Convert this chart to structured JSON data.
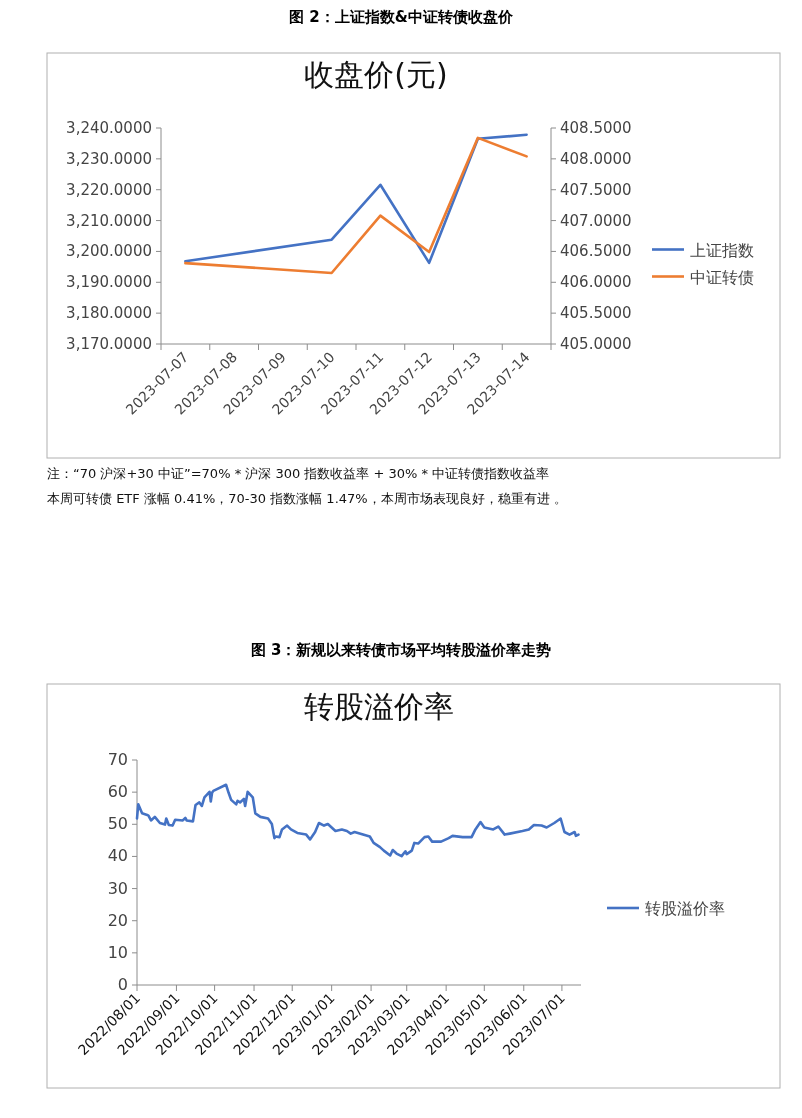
{
  "chart_data": [
    {
      "type": "line",
      "title": "图 2：上证指数&中证转债收盘价",
      "subtitle": "收盘价(元)",
      "annotations": [
        "注：“70 沪深+30 中证”=70% *  沪深 300 指数收益率 + 30% *  中证转债指数收益率",
        "本周可转债 ETF 涨幅 0.41%，70-30 指数涨幅 1.47%，本周市场表现良好，稳重有进 。"
      ],
      "x": [
        "2023-07-07",
        "2023-07-10",
        "2023-07-11",
        "2023-07-12",
        "2023-07-13",
        "2023-07-14"
      ],
      "series": [
        {
          "name": "上证指数",
          "color": "#4472c4",
          "values": [
            3196.8,
            3203.8,
            3221.6,
            3196.3,
            3236.5,
            3237.8
          ]
        },
        {
          "name": "中证转债",
          "color": "#ed7d31",
          "axis": "y2",
          "values": [
            406.31,
            406.15,
            407.08,
            406.49,
            408.34,
            408.04
          ]
        }
      ],
      "xlim": [
        "2023-07-06T12:00",
        "2023-07-14T12:00"
      ],
      "xticks": [
        {
          "value": "2023-07-07",
          "label": "2023-07-07"
        },
        {
          "value": "2023-07-08",
          "label": "2023-07-08"
        },
        {
          "value": "2023-07-09",
          "label": "2023-07-09"
        },
        {
          "value": "2023-07-10",
          "label": "2023-07-10"
        },
        {
          "value": "2023-07-11",
          "label": "2023-07-11"
        },
        {
          "value": "2023-07-12",
          "label": "2023-07-12"
        },
        {
          "value": "2023-07-13",
          "label": "2023-07-13"
        },
        {
          "value": "2023-07-14",
          "label": "2023-07-14"
        }
      ],
      "ylim": [
        3170,
        3240
      ],
      "yticks": [
        {
          "value": 3170,
          "label": "3,170.0000"
        },
        {
          "value": 3180,
          "label": "3,180.0000"
        },
        {
          "value": 3190,
          "label": "3,190.0000"
        },
        {
          "value": 3200,
          "label": "3,200.0000"
        },
        {
          "value": 3210,
          "label": "3,210.0000"
        },
        {
          "value": 3220,
          "label": "3,220.0000"
        },
        {
          "value": 3230,
          "label": "3,230.0000"
        },
        {
          "value": 3240,
          "label": "3,240.0000"
        }
      ],
      "y2lim": [
        405,
        408.5
      ],
      "y2ticks": [
        {
          "value": 405,
          "label": "405.0000"
        },
        {
          "value": 405.5,
          "label": "405.5000"
        },
        {
          "value": 406,
          "label": "406.0000"
        },
        {
          "value": 406.5,
          "label": "406.5000"
        },
        {
          "value": 407,
          "label": "407.0000"
        },
        {
          "value": 407.5,
          "label": "407.5000"
        },
        {
          "value": 408,
          "label": "408.0000"
        },
        {
          "value": 408.5,
          "label": "408.5000"
        }
      ],
      "legend": "right"
    },
    {
      "type": "line",
      "title": "图 3：新规以来转债市场平均转股溢价率走势",
      "subtitle": "转股溢价率",
      "x": [
        "2022-08-01",
        "2022-08-02",
        "2022-08-05",
        "2022-08-09",
        "2022-08-10",
        "2022-08-12",
        "2022-08-15",
        "2022-08-19",
        "2022-08-23",
        "2022-08-24",
        "2022-08-26",
        "2022-08-29",
        "2022-08-31",
        "2022-09-06",
        "2022-09-08",
        "2022-09-09",
        "2022-09-14",
        "2022-09-16",
        "2022-09-19",
        "2022-09-21",
        "2022-09-23",
        "2022-09-27",
        "2022-09-28",
        "2022-09-29",
        "2022-09-30",
        "2022-10-10",
        "2022-10-12",
        "2022-10-14",
        "2022-10-18",
        "2022-10-19",
        "2022-10-21",
        "2022-10-24",
        "2022-10-25",
        "2022-10-27",
        "2022-10-31",
        "2022-11-02",
        "2022-11-06",
        "2022-11-12",
        "2022-11-15",
        "2022-11-17",
        "2022-11-18",
        "2022-11-21",
        "2022-11-23",
        "2022-11-27",
        "2022-11-30",
        "2022-12-05",
        "2022-12-12",
        "2022-12-15",
        "2022-12-19",
        "2022-12-22",
        "2022-12-26",
        "2022-12-29",
        "2023-01-04",
        "2023-01-09",
        "2023-01-13",
        "2023-01-16",
        "2023-01-19",
        "2023-01-31",
        "2023-02-03",
        "2023-02-08",
        "2023-02-11",
        "2023-02-16",
        "2023-02-18",
        "2023-02-21",
        "2023-02-25",
        "2023-02-28",
        "2023-03-01",
        "2023-03-05",
        "2023-03-07",
        "2023-03-10",
        "2023-03-15",
        "2023-03-18",
        "2023-03-21",
        "2023-03-28",
        "2023-04-03",
        "2023-04-06",
        "2023-04-14",
        "2023-04-21",
        "2023-04-24",
        "2023-04-28",
        "2023-05-01",
        "2023-05-08",
        "2023-05-12",
        "2023-05-17",
        "2023-05-21",
        "2023-05-31",
        "2023-06-05",
        "2023-06-09",
        "2023-06-15",
        "2023-06-19",
        "2023-06-25",
        "2023-06-30",
        "2023-07-03",
        "2023-07-07",
        "2023-07-11",
        "2023-07-12",
        "2023-07-14"
      ],
      "series": [
        {
          "name": "转股溢价率",
          "color": "#4472c4",
          "values": [
            51.8,
            56.2,
            53.4,
            52.9,
            52.7,
            51.2,
            52.3,
            50.4,
            49.9,
            51.8,
            49.8,
            49.6,
            51.4,
            51.2,
            52.0,
            51.2,
            50.9,
            56.0,
            56.8,
            55.7,
            58.4,
            60.1,
            57.1,
            59.8,
            60.4,
            62.3,
            59.8,
            57.6,
            56.2,
            57.3,
            56.8,
            57.9,
            55.7,
            60.1,
            58.4,
            53.4,
            52.3,
            51.8,
            50.1,
            45.7,
            46.2,
            46.0,
            48.4,
            49.6,
            48.4,
            47.3,
            46.8,
            45.3,
            47.6,
            50.4,
            49.6,
            50.1,
            47.9,
            48.4,
            47.9,
            47.1,
            47.6,
            46.2,
            44.2,
            42.9,
            41.8,
            40.3,
            42.0,
            40.9,
            40.1,
            41.6,
            40.7,
            41.8,
            44.2,
            44.0,
            46.0,
            46.2,
            44.6,
            44.6,
            45.7,
            46.4,
            46.0,
            46.0,
            48.4,
            50.7,
            49.0,
            48.4,
            49.3,
            46.8,
            47.1,
            47.9,
            48.4,
            49.8,
            49.6,
            49.0,
            50.4,
            51.8,
            47.6,
            46.8,
            47.6,
            46.4,
            46.8
          ]
        }
      ],
      "xlim": [
        "2022-08-01",
        "2023-07-16"
      ],
      "xticks": [
        {
          "value": "2022-08-01",
          "label": "2022/08/01"
        },
        {
          "value": "2022-09-01",
          "label": "2022/09/01"
        },
        {
          "value": "2022-10-01",
          "label": "2022/10/01"
        },
        {
          "value": "2022-11-01",
          "label": "2022/11/01"
        },
        {
          "value": "2022-12-01",
          "label": "2022/12/01"
        },
        {
          "value": "2023-01-01",
          "label": "2023/01/01"
        },
        {
          "value": "2023-02-01",
          "label": "2023/02/01"
        },
        {
          "value": "2023-03-01",
          "label": "2023/03/01"
        },
        {
          "value": "2023-04-01",
          "label": "2023/04/01"
        },
        {
          "value": "2023-05-01",
          "label": "2023/05/01"
        },
        {
          "value": "2023-06-01",
          "label": "2023/06/01"
        },
        {
          "value": "2023-07-01",
          "label": "2023/07/01"
        }
      ],
      "ylim": [
        0,
        70
      ],
      "yticks": [
        0,
        10,
        20,
        30,
        40,
        50,
        60,
        70
      ],
      "legend": "right"
    }
  ]
}
